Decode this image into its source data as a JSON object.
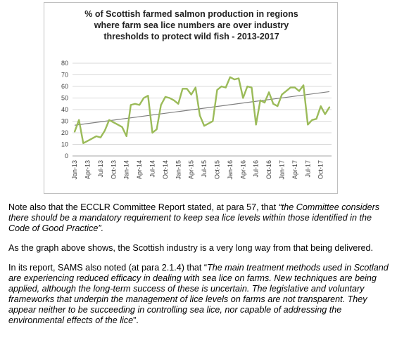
{
  "chart_data": {
    "type": "line",
    "title_lines": [
      "% of Scottish farmed salmon production in regions",
      "where farm sea lice numbers are over industry",
      "thresholds to protect wild fish - 2013-2017"
    ],
    "x": [
      "Jan-13",
      "Feb-13",
      "Mar-13",
      "Apr-13",
      "May-13",
      "Jun-13",
      "Jul-13",
      "Aug-13",
      "Sep-13",
      "Oct-13",
      "Nov-13",
      "Dec-13",
      "Jan-14",
      "Feb-14",
      "Mar-14",
      "Apr-14",
      "May-14",
      "Jun-14",
      "Jul-14",
      "Aug-14",
      "Sep-14",
      "Oct-14",
      "Nov-14",
      "Dec-14",
      "Jan-15",
      "Feb-15",
      "Mar-15",
      "Apr-15",
      "May-15",
      "Jun-15",
      "Jul-15",
      "Aug-15",
      "Sep-15",
      "Oct-15",
      "Nov-15",
      "Dec-15",
      "Jan-16",
      "Feb-16",
      "Mar-16",
      "Apr-16",
      "May-16",
      "Jun-16",
      "Jul-16",
      "Aug-16",
      "Sep-16",
      "Oct-16",
      "Nov-16",
      "Dec-16",
      "Jan-17",
      "Feb-17",
      "Mar-17",
      "Apr-17",
      "May-17",
      "Jun-17",
      "Jul-17",
      "Aug-17",
      "Sep-17",
      "Oct-17",
      "Nov-17",
      "Dec-17"
    ],
    "tick_labels": [
      "Jan-13",
      "Apr-13",
      "Jul-13",
      "Oct-13",
      "Jan-14",
      "Apr-14",
      "Jul-14",
      "Oct-14",
      "Jan-15",
      "Apr-15",
      "Jul-15",
      "Oct-15",
      "Jan-16",
      "Apr-16",
      "Jul-16",
      "Oct-16",
      "Jan-17",
      "Apr-17",
      "Jul-17",
      "Oct-17"
    ],
    "series": [
      {
        "values": [
          21,
          31,
          11,
          13,
          15,
          17,
          16,
          22,
          31,
          29,
          27,
          25,
          17,
          44,
          45,
          44,
          50,
          52,
          20,
          23,
          44,
          51,
          50,
          48,
          45,
          58,
          58,
          53,
          59,
          35,
          26,
          28,
          30,
          57,
          60,
          59,
          68,
          66,
          67,
          50,
          60,
          59,
          27,
          48,
          46,
          55,
          45,
          43,
          53,
          56,
          59,
          59,
          56,
          61,
          27,
          31,
          32,
          43,
          36,
          42
        ]
      }
    ],
    "trendline": {
      "start": 26.5,
      "end": 55.5
    },
    "ylim": [
      0,
      80
    ],
    "yticks": [
      0,
      10,
      20,
      30,
      40,
      50,
      60,
      70,
      80
    ],
    "line_color": "#9bbb59",
    "trend_color": "#7f7f7f",
    "grid": true
  },
  "text": {
    "p1_plain": "Note also that the ECCLR Committee Report stated, at para 57,  that ",
    "p1_quote": "“the Committee considers there should be a mandatory requirement to keep sea lice levels within those identified in the Code of Good Practice”.",
    "p2": "As the graph above shows, the Scottish industry is a very long way from that being delivered.",
    "p3_plain": "In its report, SAMS also noted (at para 2.1.4) that “",
    "p3_quote": "The main treatment methods used in Scotland are experiencing reduced efficacy in dealing with sea lice on farms. New techniques are being applied, although the long-term success of these is uncertain. The legislative and voluntary frameworks that underpin the management of lice levels on farms are not transparent. They appear neither to be succeeding in controlling sea lice, nor capable of addressing the environmental effects of the lice",
    "p3_end": "”."
  }
}
